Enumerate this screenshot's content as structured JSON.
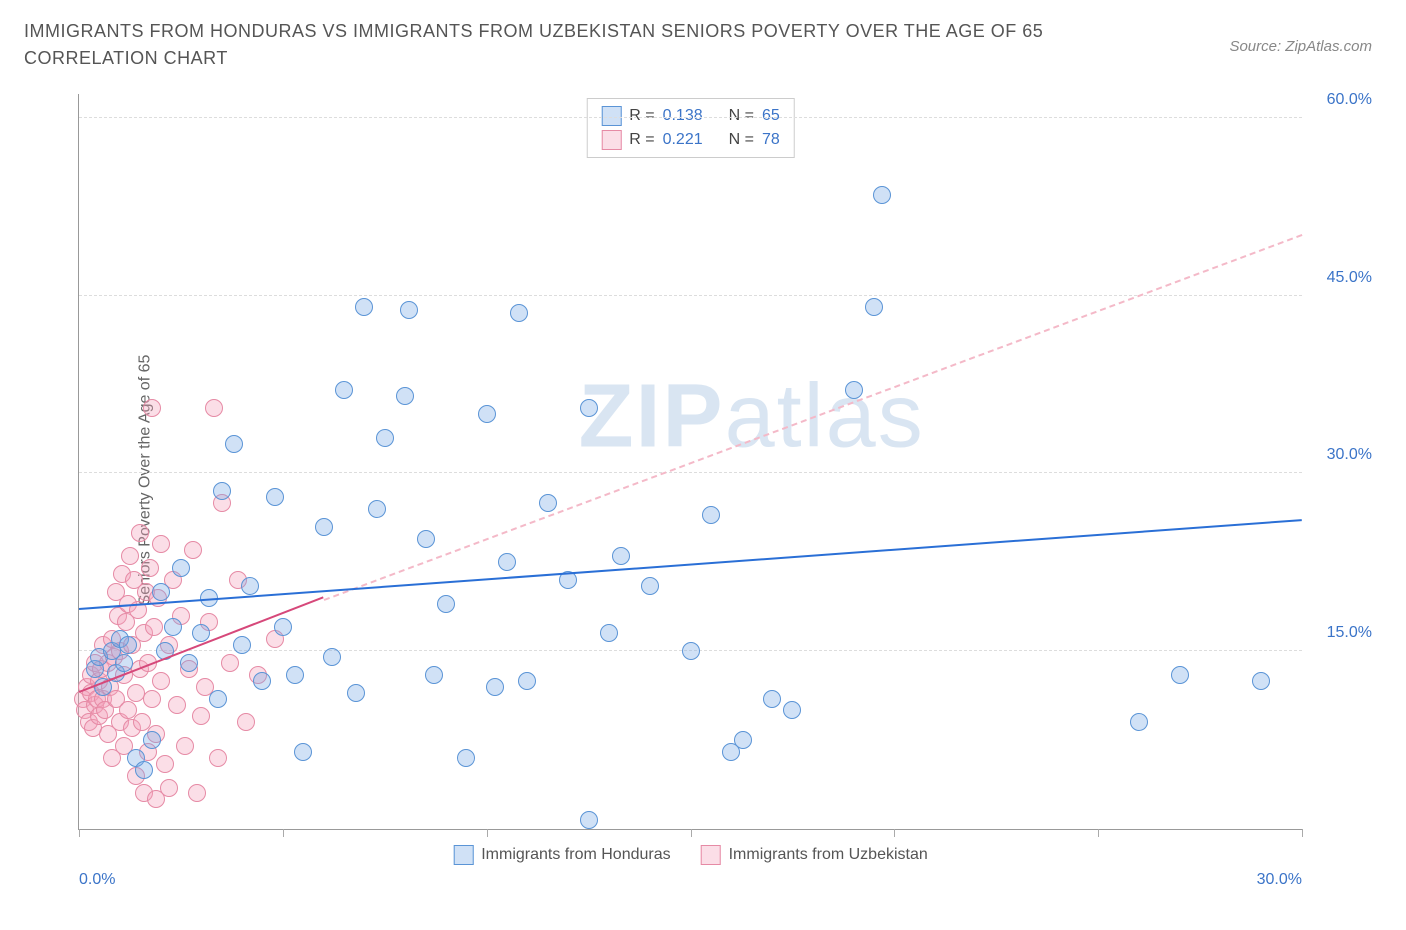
{
  "header": {
    "title": "IMMIGRANTS FROM HONDURAS VS IMMIGRANTS FROM UZBEKISTAN SENIORS POVERTY OVER THE AGE OF 65 CORRELATION CHART",
    "source": "Source: ZipAtlas.com"
  },
  "chart": {
    "type": "scatter",
    "ylabel": "Seniors Poverty Over the Age of 65",
    "xlim": [
      0,
      30
    ],
    "ylim": [
      0,
      62
    ],
    "x_ticks": [
      0,
      5,
      10,
      15,
      20,
      25,
      30
    ],
    "x_tick_labels": {
      "0": "0.0%",
      "30": "30.0%"
    },
    "y_gridlines": [
      15,
      30,
      45,
      60
    ],
    "y_tick_labels": {
      "15": "15.0%",
      "30": "30.0%",
      "45": "45.0%",
      "60": "60.0%"
    },
    "background_color": "#ffffff",
    "grid_color": "#dddddd",
    "axis_color": "#999999",
    "tick_label_color": "#3b74c8",
    "text_color": "#666666",
    "marker_radius": 9,
    "marker_stroke_width": 1.2,
    "watermark": {
      "bold": "ZIP",
      "rest": "atlas",
      "color": "rgba(120,160,210,0.28)"
    },
    "series": [
      {
        "name": "Immigrants from Honduras",
        "fill": "rgba(120,170,230,0.35)",
        "stroke": "#5a94d6",
        "trend": {
          "style": "solid",
          "color": "#2a6fd6",
          "y_at_x0": 18.5,
          "y_at_xmax": 26.0,
          "x_extent": 30
        },
        "dashed_extrapolation": {
          "color": "#f4b9c8",
          "y_at_x0": 11.5,
          "y_at_xmax": 50.0,
          "x_start": 6,
          "x_extent": 30
        },
        "stats": {
          "R": "0.138",
          "N": "65"
        },
        "points": [
          [
            0.4,
            13.5
          ],
          [
            0.5,
            14.5
          ],
          [
            0.6,
            12.0
          ],
          [
            0.8,
            15.0
          ],
          [
            0.9,
            13.2
          ],
          [
            1.0,
            16.0
          ],
          [
            1.1,
            14.0
          ],
          [
            1.2,
            15.5
          ],
          [
            1.4,
            6.0
          ],
          [
            1.6,
            5.0
          ],
          [
            1.8,
            7.5
          ],
          [
            2.0,
            20.0
          ],
          [
            2.1,
            15.0
          ],
          [
            2.3,
            17.0
          ],
          [
            2.5,
            22.0
          ],
          [
            2.7,
            14.0
          ],
          [
            3.0,
            16.5
          ],
          [
            3.2,
            19.5
          ],
          [
            3.4,
            11.0
          ],
          [
            3.5,
            28.5
          ],
          [
            3.8,
            32.5
          ],
          [
            4.0,
            15.5
          ],
          [
            4.2,
            20.5
          ],
          [
            4.5,
            12.5
          ],
          [
            4.8,
            28.0
          ],
          [
            5.0,
            17.0
          ],
          [
            5.3,
            13.0
          ],
          [
            5.5,
            6.5
          ],
          [
            6.0,
            25.5
          ],
          [
            6.2,
            14.5
          ],
          [
            6.5,
            37.0
          ],
          [
            6.8,
            11.5
          ],
          [
            7.0,
            44.0
          ],
          [
            7.3,
            27.0
          ],
          [
            7.5,
            33.0
          ],
          [
            8.0,
            36.5
          ],
          [
            8.1,
            43.8
          ],
          [
            8.5,
            24.5
          ],
          [
            8.7,
            13.0
          ],
          [
            9.0,
            19.0
          ],
          [
            9.5,
            6.0
          ],
          [
            10.0,
            35.0
          ],
          [
            10.2,
            12.0
          ],
          [
            10.5,
            22.5
          ],
          [
            10.8,
            43.5
          ],
          [
            11.0,
            12.5
          ],
          [
            11.5,
            27.5
          ],
          [
            12.0,
            21.0
          ],
          [
            12.5,
            0.8
          ],
          [
            12.5,
            35.5
          ],
          [
            13.0,
            16.5
          ],
          [
            13.3,
            23.0
          ],
          [
            14.0,
            20.5
          ],
          [
            15.0,
            15.0
          ],
          [
            15.5,
            26.5
          ],
          [
            16.0,
            6.5
          ],
          [
            16.3,
            7.5
          ],
          [
            17.0,
            11.0
          ],
          [
            17.5,
            10.0
          ],
          [
            19.0,
            37.0
          ],
          [
            19.5,
            44.0
          ],
          [
            19.7,
            53.5
          ],
          [
            26.0,
            9.0
          ],
          [
            27.0,
            13.0
          ],
          [
            29.0,
            12.5
          ]
        ]
      },
      {
        "name": "Immigrants from Uzbekistan",
        "fill": "rgba(244,160,185,0.35)",
        "stroke": "#e68aa5",
        "trend": {
          "style": "solid",
          "color": "#d6487a",
          "y_at_x0": 11.5,
          "y_at_xmax": 19.5,
          "x_extent": 6
        },
        "stats": {
          "R": "0.221",
          "N": "78"
        },
        "points": [
          [
            0.1,
            11.0
          ],
          [
            0.15,
            10.0
          ],
          [
            0.2,
            12.0
          ],
          [
            0.25,
            9.0
          ],
          [
            0.3,
            11.5
          ],
          [
            0.3,
            13.0
          ],
          [
            0.35,
            8.5
          ],
          [
            0.4,
            10.5
          ],
          [
            0.4,
            14.0
          ],
          [
            0.45,
            11.0
          ],
          [
            0.5,
            12.5
          ],
          [
            0.5,
            9.5
          ],
          [
            0.55,
            13.5
          ],
          [
            0.6,
            11.0
          ],
          [
            0.6,
            15.5
          ],
          [
            0.65,
            10.0
          ],
          [
            0.7,
            14.0
          ],
          [
            0.7,
            8.0
          ],
          [
            0.75,
            12.0
          ],
          [
            0.8,
            16.0
          ],
          [
            0.8,
            6.0
          ],
          [
            0.85,
            14.5
          ],
          [
            0.9,
            11.0
          ],
          [
            0.9,
            20.0
          ],
          [
            0.95,
            18.0
          ],
          [
            1.0,
            9.0
          ],
          [
            1.0,
            15.0
          ],
          [
            1.05,
            21.5
          ],
          [
            1.1,
            13.0
          ],
          [
            1.1,
            7.0
          ],
          [
            1.15,
            17.5
          ],
          [
            1.2,
            10.0
          ],
          [
            1.2,
            19.0
          ],
          [
            1.25,
            23.0
          ],
          [
            1.3,
            8.5
          ],
          [
            1.3,
            15.5
          ],
          [
            1.35,
            21.0
          ],
          [
            1.4,
            11.5
          ],
          [
            1.4,
            4.5
          ],
          [
            1.45,
            18.5
          ],
          [
            1.5,
            13.5
          ],
          [
            1.5,
            25.0
          ],
          [
            1.55,
            9.0
          ],
          [
            1.6,
            16.5
          ],
          [
            1.6,
            3.0
          ],
          [
            1.65,
            20.0
          ],
          [
            1.7,
            6.5
          ],
          [
            1.7,
            14.0
          ],
          [
            1.75,
            22.0
          ],
          [
            1.8,
            35.5
          ],
          [
            1.8,
            11.0
          ],
          [
            1.85,
            17.0
          ],
          [
            1.9,
            8.0
          ],
          [
            1.9,
            2.5
          ],
          [
            1.95,
            19.5
          ],
          [
            2.0,
            12.5
          ],
          [
            2.0,
            24.0
          ],
          [
            2.1,
            5.5
          ],
          [
            2.2,
            15.5
          ],
          [
            2.2,
            3.5
          ],
          [
            2.3,
            21.0
          ],
          [
            2.4,
            10.5
          ],
          [
            2.5,
            18.0
          ],
          [
            2.6,
            7.0
          ],
          [
            2.7,
            13.5
          ],
          [
            2.8,
            23.5
          ],
          [
            2.9,
            3.0
          ],
          [
            3.0,
            9.5
          ],
          [
            3.1,
            12.0
          ],
          [
            3.2,
            17.5
          ],
          [
            3.3,
            35.5
          ],
          [
            3.4,
            6.0
          ],
          [
            3.5,
            27.5
          ],
          [
            3.7,
            14.0
          ],
          [
            3.9,
            21.0
          ],
          [
            4.1,
            9.0
          ],
          [
            4.4,
            13.0
          ],
          [
            4.8,
            16.0
          ]
        ]
      }
    ],
    "legend_labels": {
      "R": "R =",
      "N": "N ="
    }
  }
}
